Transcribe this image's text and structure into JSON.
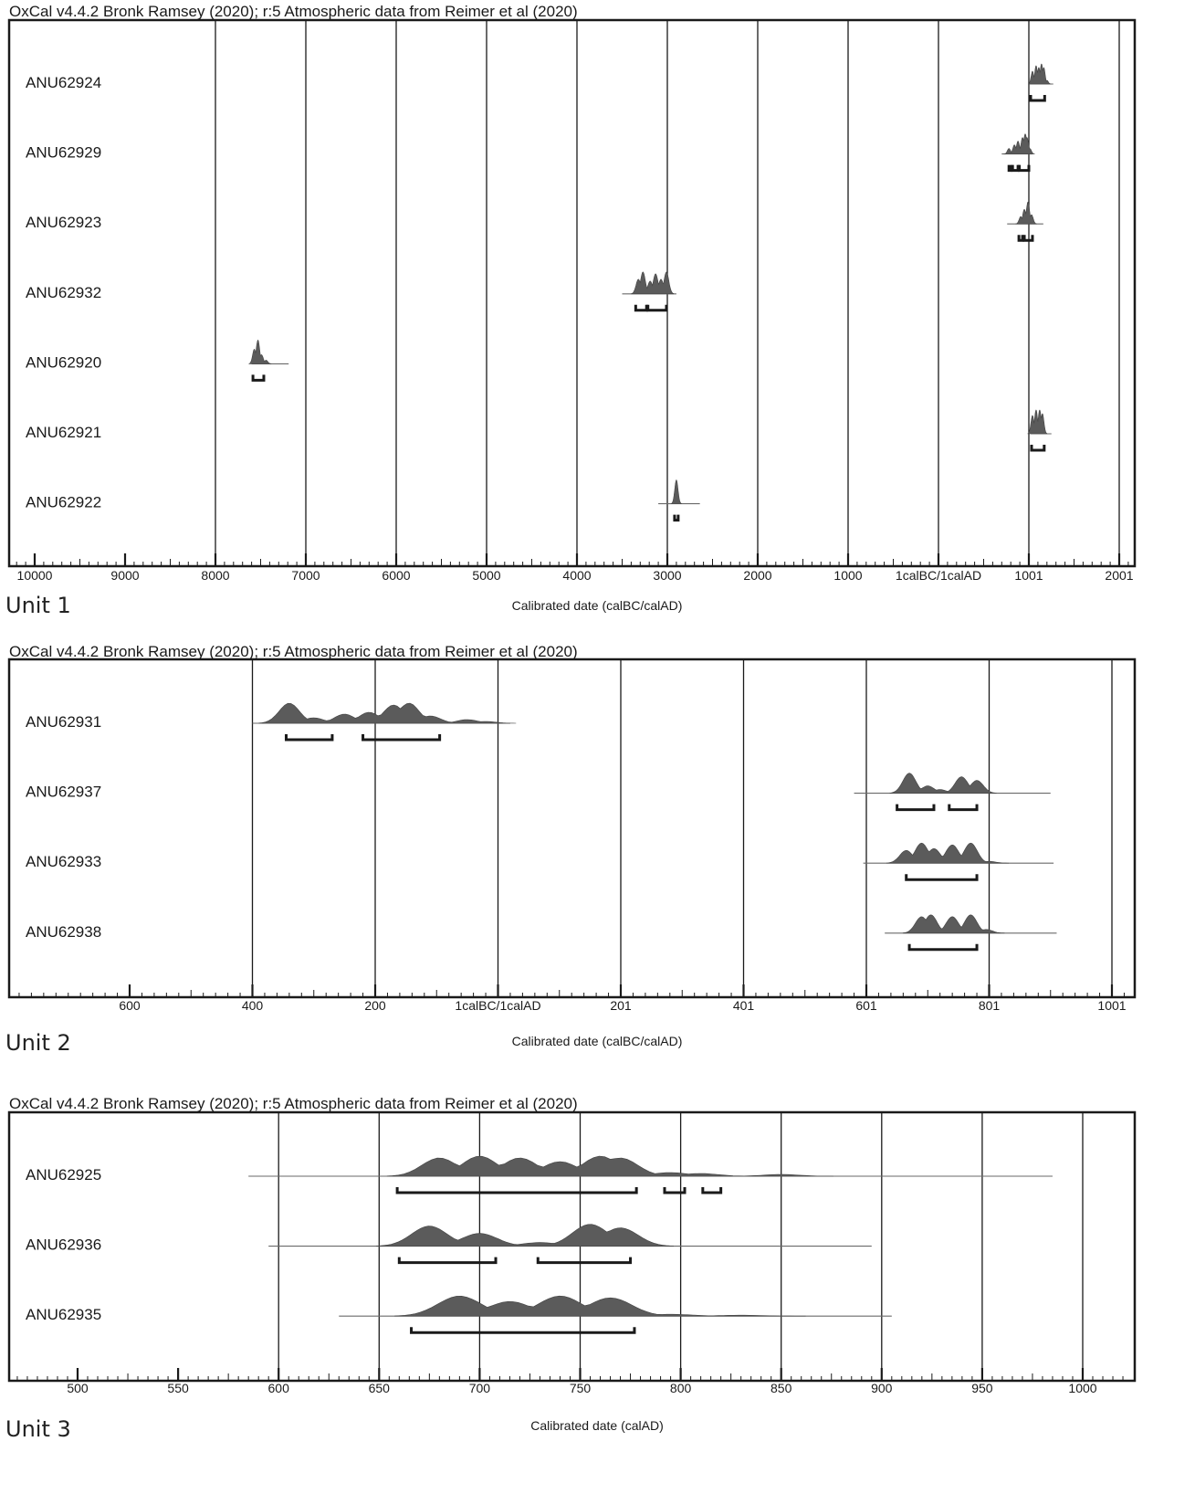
{
  "figure": {
    "background": "#ffffff",
    "ink": "#1a1a1a",
    "curve_fill": "#5b5b5b"
  },
  "chart_data": [
    {
      "type": "probability-ridge",
      "title": "OxCal v4.4.2 Bronk Ramsey (2020); r:5 Atmospheric data from Reimer et al (2020)",
      "xlabel": "Calibrated date (calBC/calAD)",
      "unit_label": "Unit 1",
      "tick_labels": [
        "10000",
        "9000",
        "8000",
        "7000",
        "6000",
        "5000",
        "4000",
        "3000",
        "2000",
        "1000",
        "1calBC/1calAD",
        "1001",
        "2001"
      ],
      "xlim": [
        -10200,
        2150
      ],
      "grid": true,
      "series": [
        {
          "name": "ANU62924",
          "line": [
            1000,
            1270
          ],
          "peaks": [
            [
              1040,
              14
            ],
            [
              1080,
              20
            ],
            [
              1110,
              18
            ],
            [
              1140,
              22
            ],
            [
              1165,
              18
            ],
            [
              1200,
              4
            ]
          ],
          "ranges": [
            [
              1020,
              1175
            ]
          ]
        },
        {
          "name": "ANU62929",
          "line": [
            700,
            1040
          ],
          "peaks": [
            [
              780,
              6
            ],
            [
              840,
              10
            ],
            [
              880,
              14
            ],
            [
              930,
              18
            ],
            [
              960,
              22
            ],
            [
              980,
              18
            ],
            [
              1010,
              6
            ]
          ],
          "ranges": [
            [
              780,
              800
            ],
            [
              820,
              880
            ],
            [
              895,
              1000
            ]
          ]
        },
        {
          "name": "ANU62923",
          "line": [
            760,
            1160
          ],
          "peaks": [
            [
              910,
              8
            ],
            [
              950,
              16
            ],
            [
              990,
              24
            ],
            [
              1030,
              10
            ]
          ],
          "ranges": [
            [
              890,
              930
            ],
            [
              950,
              1040
            ]
          ]
        },
        {
          "name": "ANU62932",
          "line": [
            -3500,
            -2900
          ],
          "peaks": [
            [
              -3320,
              16
            ],
            [
              -3270,
              24
            ],
            [
              -3190,
              14
            ],
            [
              -3130,
              22
            ],
            [
              -3070,
              16
            ],
            [
              -3010,
              24
            ]
          ],
          "ranges": [
            [
              -3350,
              -3230
            ],
            [
              -3215,
              -3010
            ]
          ]
        },
        {
          "name": "ANU62920",
          "line": [
            -7600,
            -7190
          ],
          "peaks": [
            [
              -7570,
              16
            ],
            [
              -7530,
              26
            ],
            [
              -7490,
              10
            ],
            [
              -7440,
              4
            ]
          ],
          "ranges": [
            [
              -7585,
              -7465
            ]
          ]
        },
        {
          "name": "ANU62921",
          "line": [
            1020,
            1250
          ],
          "peaks": [
            [
              1040,
              20
            ],
            [
              1080,
              26
            ],
            [
              1120,
              26
            ],
            [
              1150,
              22
            ]
          ],
          "ranges": [
            [
              1030,
              1170
            ]
          ]
        },
        {
          "name": "ANU62922",
          "line": [
            -3100,
            -2640
          ],
          "peaks": [
            [
              -2900,
              26
            ]
          ],
          "ranges": [
            [
              -2920,
              -2880
            ]
          ]
        }
      ]
    },
    {
      "type": "probability-ridge",
      "title": "OxCal v4.4.2 Bronk Ramsey (2020); r:5 Atmospheric data from Reimer et al (2020)",
      "xlabel": "Calibrated date (calBC/calAD)",
      "unit_label": "Unit 2",
      "tick_labels": [
        "600",
        "400",
        "200",
        "1calBC/1calAD",
        "201",
        "401",
        "601",
        "801",
        "1001"
      ],
      "xlim": [
        -800,
        1060
      ],
      "grid": true,
      "series": [
        {
          "name": "ANU62931",
          "line": [
            -400,
            20
          ],
          "peaks": [
            [
              -340,
              22
            ],
            [
              -300,
              6
            ],
            [
              -250,
              10
            ],
            [
              -210,
              12
            ],
            [
              -170,
              20
            ],
            [
              -145,
              22
            ],
            [
              -110,
              8
            ],
            [
              -50,
              4
            ],
            [
              -20,
              2
            ]
          ],
          "ranges": [
            [
              -345,
              -270
            ],
            [
              -220,
              -95
            ]
          ]
        },
        {
          "name": "ANU62937",
          "line": [
            580,
            900
          ],
          "peaks": [
            [
              670,
              22
            ],
            [
              700,
              8
            ],
            [
              720,
              4
            ],
            [
              755,
              18
            ],
            [
              780,
              14
            ]
          ],
          "ranges": [
            [
              650,
              710
            ],
            [
              735,
              780
            ]
          ]
        },
        {
          "name": "ANU62933",
          "line": [
            595,
            905
          ],
          "peaks": [
            [
              665,
              14
            ],
            [
              690,
              22
            ],
            [
              710,
              16
            ],
            [
              740,
              20
            ],
            [
              770,
              22
            ],
            [
              800,
              2
            ]
          ],
          "ranges": [
            [
              665,
              780
            ]
          ]
        },
        {
          "name": "ANU62938",
          "line": [
            630,
            910
          ],
          "peaks": [
            [
              690,
              18
            ],
            [
              705,
              20
            ],
            [
              740,
              18
            ],
            [
              770,
              20
            ],
            [
              795,
              4
            ]
          ],
          "ranges": [
            [
              670,
              780
            ]
          ]
        }
      ]
    },
    {
      "type": "probability-ridge",
      "title": "OxCal v4.4.2 Bronk Ramsey (2020); r:5 Atmospheric data from Reimer et al (2020)",
      "xlabel": "Calibrated date (calAD)",
      "unit_label": "Unit 3",
      "tick_labels": [
        "500",
        "550",
        "600",
        "650",
        "700",
        "750",
        "800",
        "850",
        "900",
        "950",
        "1000"
      ],
      "xlim": [
        477,
        1045
      ],
      "grid": true,
      "series": [
        {
          "name": "ANU62925",
          "line": [
            585,
            985
          ],
          "peaks": [
            [
              680,
              20
            ],
            [
              700,
              22
            ],
            [
              720,
              20
            ],
            [
              740,
              16
            ],
            [
              760,
              22
            ],
            [
              770,
              20
            ],
            [
              795,
              4
            ],
            [
              810,
              3
            ],
            [
              850,
              2
            ]
          ],
          "ranges": [
            [
              659,
              778
            ],
            [
              792,
              802
            ],
            [
              811,
              820
            ]
          ]
        },
        {
          "name": "ANU62936",
          "line": [
            595,
            895
          ],
          "peaks": [
            [
              675,
              22
            ],
            [
              700,
              14
            ],
            [
              730,
              4
            ],
            [
              755,
              24
            ],
            [
              770,
              20
            ]
          ],
          "ranges": [
            [
              660,
              708
            ],
            [
              729,
              775
            ]
          ]
        },
        {
          "name": "ANU62935",
          "line": [
            630,
            905
          ],
          "peaks": [
            [
              690,
              22
            ],
            [
              715,
              16
            ],
            [
              740,
              22
            ],
            [
              765,
              20
            ],
            [
              795,
              2
            ],
            [
              830,
              1
            ]
          ],
          "ranges": [
            [
              666,
              777
            ]
          ]
        }
      ]
    }
  ]
}
